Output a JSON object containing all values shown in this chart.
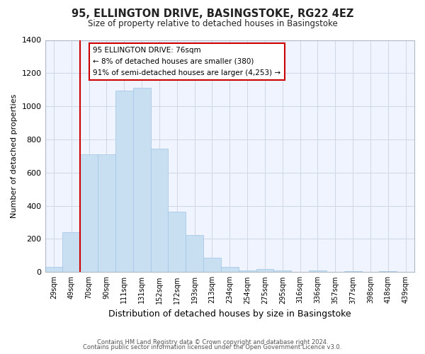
{
  "title": "95, ELLINGTON DRIVE, BASINGSTOKE, RG22 4EZ",
  "subtitle": "Size of property relative to detached houses in Basingstoke",
  "xlabel": "Distribution of detached houses by size in Basingstoke",
  "ylabel": "Number of detached properties",
  "bar_labels": [
    "29sqm",
    "49sqm",
    "70sqm",
    "90sqm",
    "111sqm",
    "131sqm",
    "152sqm",
    "172sqm",
    "193sqm",
    "213sqm",
    "234sqm",
    "254sqm",
    "275sqm",
    "295sqm",
    "316sqm",
    "336sqm",
    "357sqm",
    "377sqm",
    "398sqm",
    "418sqm",
    "439sqm"
  ],
  "bar_values": [
    30,
    240,
    710,
    710,
    1095,
    1110,
    745,
    365,
    225,
    85,
    30,
    10,
    20,
    10,
    0,
    10,
    0,
    5,
    0,
    5,
    0
  ],
  "bar_color": "#c8dff2",
  "bar_edge_color": "#a8c8e8",
  "vline_x_index": 2,
  "vline_color": "#cc0000",
  "annotation_title": "95 ELLINGTON DRIVE: 76sqm",
  "annotation_line1": "← 8% of detached houses are smaller (380)",
  "annotation_line2": "91% of semi-detached houses are larger (4,253) →",
  "annotation_box_color": "#ffffff",
  "annotation_box_edge": "#cc0000",
  "ylim": [
    0,
    1400
  ],
  "yticks": [
    0,
    200,
    400,
    600,
    800,
    1000,
    1200,
    1400
  ],
  "footer1": "Contains HM Land Registry data © Crown copyright and database right 2024.",
  "footer2": "Contains public sector information licensed under the Open Government Licence v3.0.",
  "bg_color": "#ffffff",
  "plot_bg_color": "#f0f4ff",
  "grid_color": "#d0d8e8"
}
